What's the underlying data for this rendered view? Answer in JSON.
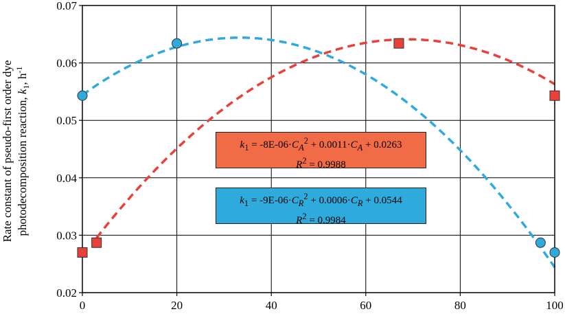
{
  "chart_data": {
    "type": "scatter",
    "title": "",
    "xlabel": "",
    "ylabel_line1": "Rate constant of pseudo-first order dye",
    "ylabel_line2_prefix": "photodecomposition reaction, ",
    "ylabel_k": "k",
    "ylabel_k_sub": "1",
    "ylabel_unit": ", h",
    "ylabel_unit_sup": "-1",
    "xlim": [
      0,
      100
    ],
    "ylim": [
      0.02,
      0.07
    ],
    "x_ticks": [
      0,
      20,
      40,
      60,
      80,
      100
    ],
    "x_tick_labels": [
      "0",
      "20",
      "40",
      "60",
      "80",
      "100"
    ],
    "y_ticks": [
      0.02,
      0.03,
      0.04,
      0.05,
      0.06,
      0.07
    ],
    "y_tick_labels": [
      "0.02",
      "0.03",
      "0.04",
      "0.05",
      "0.06",
      "0.07"
    ],
    "grid": true,
    "series": [
      {
        "marker": "square",
        "color": "#e8413a",
        "points": [
          {
            "x": 0,
            "y": 0.027
          },
          {
            "x": 3,
            "y": 0.0287
          },
          {
            "x": 67,
            "y": 0.0634
          },
          {
            "x": 100,
            "y": 0.0543
          }
        ],
        "trendline": {
          "type": "polynomial",
          "a": -8e-06,
          "b": 0.0011,
          "c": 0.0263,
          "x_from": 3,
          "x_to": 100,
          "color": "#e8413a"
        }
      },
      {
        "marker": "circle",
        "color": "#2eaadc",
        "points": [
          {
            "x": 0,
            "y": 0.0543
          },
          {
            "x": 20,
            "y": 0.0634
          },
          {
            "x": 97,
            "y": 0.0287
          },
          {
            "x": 100,
            "y": 0.027
          }
        ],
        "trendline": {
          "type": "polynomial",
          "a": -9e-06,
          "b": 0.0006,
          "c": 0.0544,
          "x_from": 0,
          "x_to": 100,
          "color": "#2eaadc"
        }
      }
    ],
    "annotations": [
      {
        "id": "eq-a",
        "bg_color": "#f26b47",
        "k": "k",
        "k_sub": "1",
        "part1": " = -8E-06·",
        "var": "C",
        "var_sub": "A",
        "var_sup": "2",
        "part2": " + 0.0011·",
        "var2": "C",
        "var2_sub": "A",
        "part3": " + 0.0263",
        "r_label": "R",
        "r_sup": "2",
        "r_value": " = 0.9988"
      },
      {
        "id": "eq-r",
        "bg_color": "#2eaadc",
        "k": "k",
        "k_sub": "1",
        "part1": " = -9E-06·",
        "var": "C",
        "var_sub": "R",
        "var_sup": "2",
        "part2": " + 0.0006·",
        "var2": "C",
        "var2_sub": "R",
        "part3": " + 0.0544",
        "r_label": "R",
        "r_sup": "2",
        "r_value": " = 0.9984"
      }
    ]
  }
}
